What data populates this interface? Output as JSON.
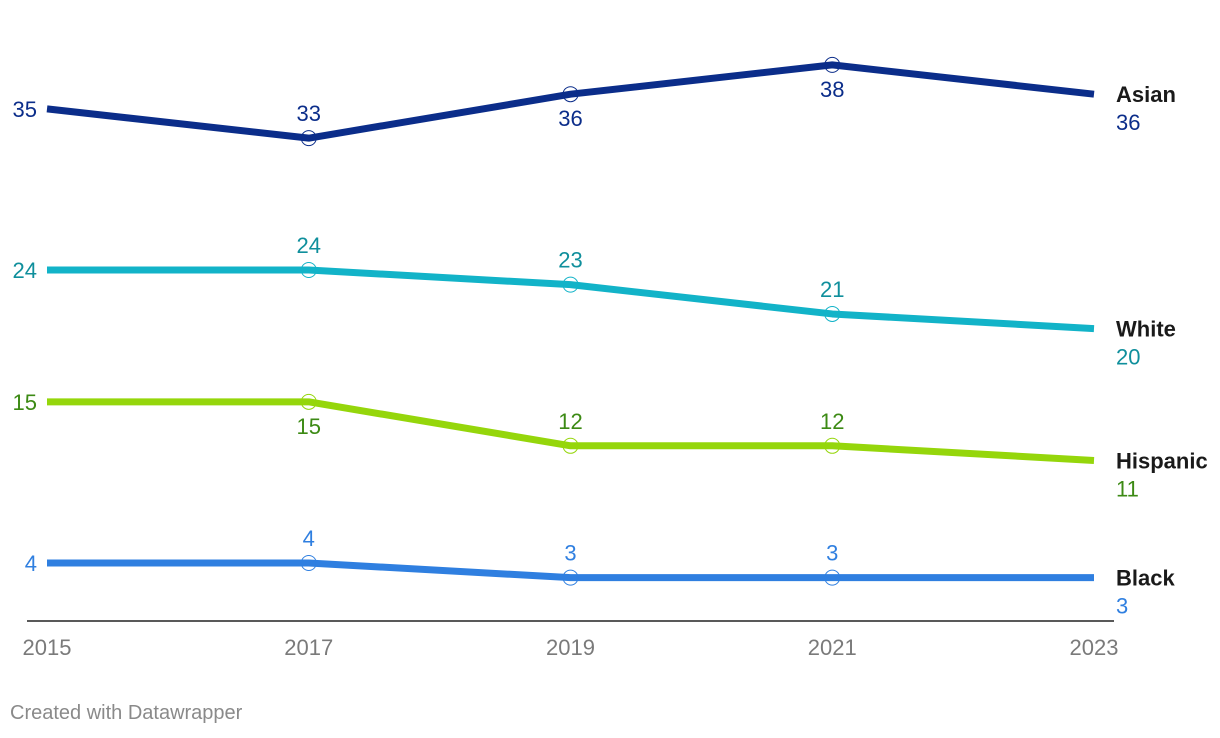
{
  "chart_data": {
    "type": "line",
    "x": [
      "2015",
      "2017",
      "2019",
      "2021",
      "2023"
    ],
    "series": [
      {
        "name": "Asian",
        "values": [
          35,
          33,
          36,
          38,
          36
        ],
        "color": "#0b2d8a",
        "labelColor": "#0b2d8a"
      },
      {
        "name": "White",
        "values": [
          24,
          24,
          23,
          21,
          20
        ],
        "color": "#12b3c8",
        "labelColor": "#0f8f9c"
      },
      {
        "name": "Hispanic",
        "values": [
          15,
          15,
          12,
          12,
          11
        ],
        "color": "#95d60b",
        "labelColor": "#3c8a14"
      },
      {
        "name": "Black",
        "values": [
          4,
          4,
          3,
          3,
          3
        ],
        "color": "#2f7fe0",
        "labelColor": "#2f7fe0"
      }
    ],
    "value_label_position": {
      "Asian": [
        "left",
        "above",
        "below",
        "below",
        "end"
      ],
      "White": [
        "left",
        "above",
        "above",
        "above",
        "end"
      ],
      "Hispanic": [
        "left",
        "below",
        "above",
        "above",
        "end"
      ],
      "Black": [
        "left",
        "above",
        "above",
        "above",
        "end"
      ]
    },
    "grid": false,
    "legend": "direct labels at line ends"
  },
  "footer": {
    "credit": "Created with Datawrapper"
  }
}
